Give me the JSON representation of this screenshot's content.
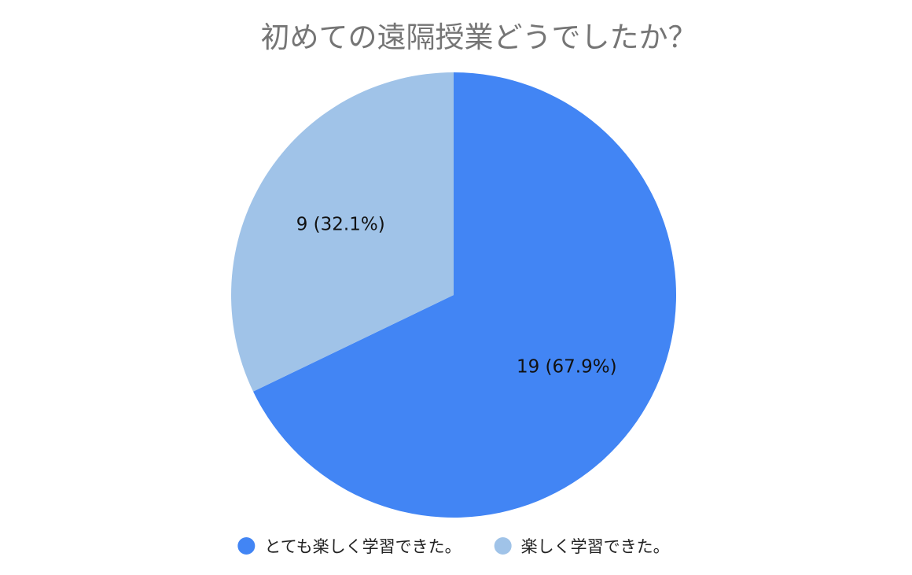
{
  "chart_data": {
    "type": "pie",
    "title": "初めての遠隔授業どうでしたか？",
    "slices": [
      {
        "label": "とても楽しく学習できた。",
        "value": 19,
        "percent": 67.9,
        "color": "#4285f4",
        "display": "19 (67.9%)"
      },
      {
        "label": "楽しく学習できた。",
        "value": 9,
        "percent": 32.1,
        "color": "#a0c3e8",
        "display": "9 (32.1%)"
      }
    ],
    "legend_position": "bottom",
    "start_angle": "top",
    "direction": "clockwise"
  }
}
